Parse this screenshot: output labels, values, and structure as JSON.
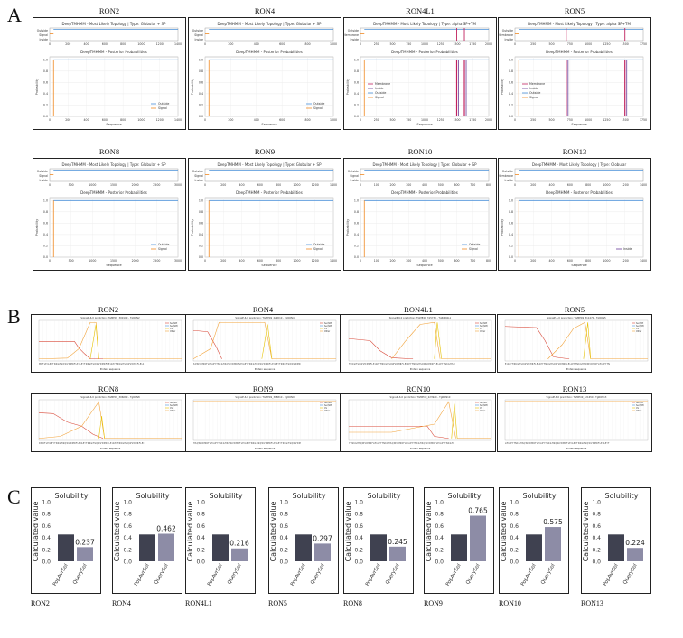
{
  "panels": {
    "a": "A",
    "b": "B",
    "c": "C"
  },
  "panel_a": {
    "line1_prefix": "DeepTMHMM - Most Likely Topology | Type: ",
    "line2_title": "DeepTMHMM - Posterior Probabilities",
    "x_label": "Sequence",
    "y_label": "Probability",
    "proteins": [
      {
        "name": "RON2",
        "type": "Globular + SP",
        "xmax": 1400,
        "ticks": [
          0,
          200,
          400,
          600,
          800,
          1000,
          1200,
          1400
        ],
        "states": [
          "Outside",
          "Signal",
          "Inside"
        ],
        "legend": [
          "Outside",
          "Signal"
        ],
        "tm": []
      },
      {
        "name": "RON4",
        "type": "Globular + SP",
        "xmax": 1000,
        "ticks": [
          0,
          200,
          400,
          600,
          800,
          1000
        ],
        "states": [
          "Outside",
          "Signal",
          "Inside"
        ],
        "legend": [
          "Outside",
          "Signal"
        ],
        "tm": []
      },
      {
        "name": "RON4L1",
        "type": "alpha SP+TM",
        "xmax": 2000,
        "ticks": [
          0,
          250,
          500,
          750,
          1000,
          1250,
          1500,
          1750,
          2000
        ],
        "states": [
          "Outside",
          "Membrane",
          "Inside"
        ],
        "legend": [
          "Membrane",
          "Inside",
          "Outside",
          "Signal"
        ],
        "tm": [
          1500,
          1620
        ]
      },
      {
        "name": "RON5",
        "type": "alpha SP+TM",
        "xmax": 1750,
        "ticks": [
          0,
          250,
          500,
          750,
          1000,
          1250,
          1500,
          1750
        ],
        "states": [
          "Outside",
          "Membrane",
          "Inside"
        ],
        "legend": [
          "Membrane",
          "Inside",
          "Outside",
          "Signal"
        ],
        "tm": [
          700,
          1500
        ]
      },
      {
        "name": "RON8",
        "type": "Globular + SP",
        "xmax": 3000,
        "ticks": [
          0,
          500,
          1000,
          1500,
          2000,
          2500,
          3000
        ],
        "states": [
          "Outside",
          "Signal",
          "Inside"
        ],
        "legend": [
          "Outside",
          "Signal"
        ],
        "tm": []
      },
      {
        "name": "RON9",
        "type": "Globular + SP",
        "xmax": 1400,
        "ticks": [
          0,
          200,
          400,
          600,
          800,
          1000,
          1200,
          1400
        ],
        "states": [
          "Outside",
          "Signal",
          "Inside"
        ],
        "legend": [
          "Outside",
          "Signal"
        ],
        "tm": []
      },
      {
        "name": "RON10",
        "type": "Globular + SP",
        "xmax": 800,
        "ticks": [
          0,
          100,
          200,
          300,
          400,
          500,
          600,
          700,
          800
        ],
        "states": [
          "Outside",
          "Signal",
          "Inside"
        ],
        "legend": [
          "Outside",
          "Signal"
        ],
        "tm": []
      },
      {
        "name": "RON13",
        "type": "Globular",
        "xmax": 1400,
        "ticks": [
          0,
          200,
          400,
          600,
          800,
          1000,
          1200,
          1400
        ],
        "states": [
          "Outside",
          "Membrane",
          "Inside"
        ],
        "legend": [
          "Inside"
        ],
        "tm": []
      }
    ]
  },
  "panel_b": {
    "subtitles": [
      "SignalP-6.0 prediction: TGME49_300100 - TgRON2",
      "SignalP-6.0 prediction: TGME49_229010 - TgRON4",
      "SignalP-6.0 prediction: TGME49_315730 - TgRON4L1",
      "SignalP-6.0 prediction: TGME49_311470 - TgRON5",
      "SignalP-6.0 prediction: TGME49_306060 - TgRON8",
      "SignalP-6.0 prediction: TGME49_308810 - TgRON9",
      "SignalP-6.0 prediction: TGME49_223920 - TgRON10",
      "SignalP-6.0 prediction: TGME49_321650 - TgRON13"
    ],
    "names": [
      "RON2",
      "RON4",
      "RON4L1",
      "RON5",
      "RON8",
      "RON9",
      "RON10",
      "RON13"
    ],
    "x_label": "Protein sequence",
    "legend": [
      "Sec/SPI",
      "Sec/SPII",
      "CS",
      "Other"
    ]
  },
  "chart_data": {
    "type": "bar",
    "title": "Solubility",
    "ylabel": "Calculated value",
    "categories": [
      "PopAvrSol",
      "QuerySol"
    ],
    "ylim": [
      0,
      1.0
    ],
    "yticks": [
      "0.0",
      "0.2",
      "0.4",
      "0.6",
      "0.8",
      "1.0"
    ],
    "pop_avr_sol": 0.45,
    "colors": {
      "pop": "#3f4150",
      "query": "#8d8ca6"
    },
    "panels": [
      {
        "name": "RON2",
        "query": 0.237,
        "label": "0.237"
      },
      {
        "name": "RON4",
        "query": 0.462,
        "label": "0.462"
      },
      {
        "name": "RON4L1",
        "query": 0.216,
        "label": "0.216"
      },
      {
        "name": "RON5",
        "query": 0.297,
        "label": "0.297"
      },
      {
        "name": "RON8",
        "query": 0.245,
        "label": "0.245"
      },
      {
        "name": "RON9",
        "query": 0.765,
        "label": "0.765"
      },
      {
        "name": "RON10",
        "query": 0.575,
        "label": "0.575"
      },
      {
        "name": "RON13",
        "query": 0.224,
        "label": "0.224"
      }
    ]
  }
}
